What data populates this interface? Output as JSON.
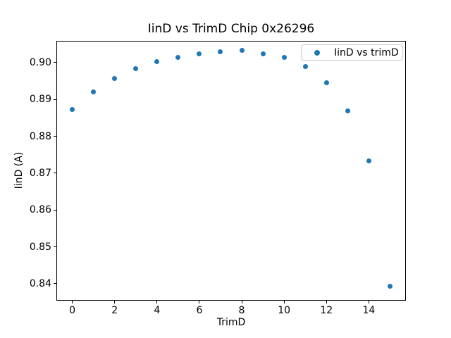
{
  "chart_data": {
    "type": "scatter",
    "title": "IinD vs TrimD Chip 0x26296",
    "xlabel": "TrimD",
    "ylabel": "IinD (A)",
    "legend_label": "IinD vs trimD",
    "legend_position": "upper right",
    "marker_color": "#1f77b4",
    "grid": false,
    "x": [
      0,
      1,
      2,
      3,
      4,
      5,
      6,
      7,
      8,
      9,
      10,
      11,
      12,
      13,
      14,
      15
    ],
    "y": [
      0.8873,
      0.8921,
      0.8957,
      0.8984,
      0.9003,
      0.9014,
      0.9024,
      0.903,
      0.9033,
      0.9024,
      0.9015,
      0.8989,
      0.8945,
      0.8868,
      0.8733,
      0.8393
    ],
    "xlim": [
      -0.75,
      15.75
    ],
    "ylim": [
      0.8354,
      0.9059
    ],
    "xticks": {
      "values": [
        0,
        2,
        4,
        6,
        8,
        10,
        12,
        14
      ],
      "labels": [
        "0",
        "2",
        "4",
        "6",
        "8",
        "10",
        "12",
        "14"
      ]
    },
    "yticks": {
      "values": [
        0.84,
        0.85,
        0.86,
        0.87,
        0.88,
        0.89,
        0.9
      ],
      "labels": [
        "0.84",
        "0.85",
        "0.86",
        "0.87",
        "0.88",
        "0.89",
        "0.90"
      ]
    }
  }
}
